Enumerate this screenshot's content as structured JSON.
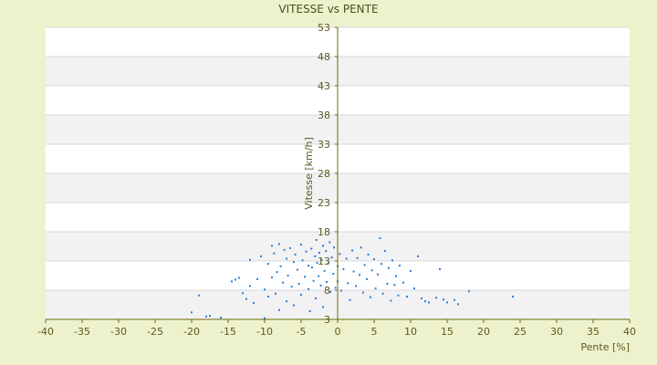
{
  "chart_data": {
    "type": "scatter",
    "title": "VITESSE vs PENTE",
    "xlabel": "Pente [%]",
    "ylabel": "Vitesse [km/h]",
    "xlim": [
      -40,
      40
    ],
    "ylim": [
      3,
      53
    ],
    "x_ticks": [
      -40,
      -35,
      -30,
      -25,
      -20,
      -15,
      -10,
      -5,
      0,
      5,
      10,
      15,
      20,
      25,
      30,
      35,
      40
    ],
    "y_ticks": [
      3,
      8,
      13,
      18,
      23,
      28,
      33,
      38,
      43,
      48,
      53
    ],
    "grid": true,
    "band_colors": [
      "#ffffff",
      "#f2f2f2"
    ],
    "point_color": "#2a7fd4",
    "axis_color": "#6b6b10",
    "series": [
      {
        "points": [
          [
            -20,
            4.2
          ],
          [
            -19,
            7.1
          ],
          [
            -18,
            3.5
          ],
          [
            -17.5,
            3.6
          ],
          [
            -16,
            3.3
          ],
          [
            -14.5,
            9.5
          ],
          [
            -14,
            9.8
          ],
          [
            -13.5,
            10.1
          ],
          [
            -13,
            7.5
          ],
          [
            -12.5,
            6.5
          ],
          [
            -12,
            8.7
          ],
          [
            -12,
            13.2
          ],
          [
            -11.5,
            5.8
          ],
          [
            -11,
            9.9
          ],
          [
            -10.5,
            13.8
          ],
          [
            -10,
            8.1
          ],
          [
            -10,
            3.2
          ],
          [
            -9.5,
            12.5
          ],
          [
            -9.5,
            6.9
          ],
          [
            -9,
            15.6
          ],
          [
            -9,
            10.2
          ],
          [
            -8.7,
            14.3
          ],
          [
            -8.5,
            7.4
          ],
          [
            -8.3,
            11.1
          ],
          [
            -8,
            15.9
          ],
          [
            -8,
            4.6
          ],
          [
            -7.8,
            12.1
          ],
          [
            -7.5,
            9.3
          ],
          [
            -7.3,
            14.9
          ],
          [
            -7,
            6.1
          ],
          [
            -7,
            13.4
          ],
          [
            -6.8,
            10.5
          ],
          [
            -6.5,
            15.2
          ],
          [
            -6.3,
            8.6
          ],
          [
            -6,
            12.8
          ],
          [
            -6,
            5.4
          ],
          [
            -5.8,
            14.1
          ],
          [
            -5.5,
            11.5
          ],
          [
            -5.3,
            9.1
          ],
          [
            -5,
            15.8
          ],
          [
            -5,
            7.2
          ],
          [
            -4.8,
            13.1
          ],
          [
            -4.5,
            10.3
          ],
          [
            -4.3,
            14.6
          ],
          [
            -4,
            8.2
          ],
          [
            -4,
            12.2
          ],
          [
            -3.8,
            4.4
          ],
          [
            -3.6,
            15.1
          ],
          [
            -3.5,
            11.9
          ],
          [
            -3.3,
            9.6
          ],
          [
            -3.1,
            13.8
          ],
          [
            -3,
            6.6
          ],
          [
            -2.9,
            16.6
          ],
          [
            -2.8,
            12.7
          ],
          [
            -2.6,
            10.4
          ],
          [
            -2.5,
            14.4
          ],
          [
            -2.3,
            8.8
          ],
          [
            -2.2,
            13.2
          ],
          [
            -2,
            15.6
          ],
          [
            -2,
            5.1
          ],
          [
            -1.8,
            11.3
          ],
          [
            -1.6,
            14.7
          ],
          [
            -1.5,
            9.4
          ],
          [
            -1.3,
            12.6
          ],
          [
            -1.1,
            16.2
          ],
          [
            -1,
            7.7
          ],
          [
            -0.8,
            13.6
          ],
          [
            -0.6,
            10.8
          ],
          [
            -0.5,
            15.3
          ],
          [
            -0.3,
            8.4
          ],
          [
            0,
            9.5
          ],
          [
            0,
            12.1
          ],
          [
            0.3,
            14.2
          ],
          [
            0.5,
            7.9
          ],
          [
            0.8,
            11.6
          ],
          [
            1.2,
            13.4
          ],
          [
            1.4,
            9.2
          ],
          [
            1.7,
            6.3
          ],
          [
            2,
            14.8
          ],
          [
            2.2,
            11.2
          ],
          [
            2.5,
            8.7
          ],
          [
            2.7,
            13.5
          ],
          [
            3,
            10.6
          ],
          [
            3.2,
            15.3
          ],
          [
            3.5,
            7.6
          ],
          [
            3.7,
            12.3
          ],
          [
            4,
            9.9
          ],
          [
            4.2,
            14.1
          ],
          [
            4.5,
            6.8
          ],
          [
            4.7,
            11.4
          ],
          [
            5,
            13.3
          ],
          [
            5.2,
            8.3
          ],
          [
            5.5,
            10.7
          ],
          [
            5.8,
            16.9
          ],
          [
            6,
            12.5
          ],
          [
            6.2,
            7.4
          ],
          [
            6.5,
            14.7
          ],
          [
            6.8,
            9.1
          ],
          [
            7,
            11.8
          ],
          [
            7.3,
            6.2
          ],
          [
            7.5,
            13.1
          ],
          [
            7.8,
            8.9
          ],
          [
            8,
            10.4
          ],
          [
            8.3,
            7.1
          ],
          [
            8.5,
            12.2
          ],
          [
            9,
            9.3
          ],
          [
            9.5,
            6.9
          ],
          [
            10,
            11.3
          ],
          [
            10.5,
            8.3
          ],
          [
            11,
            13.8
          ],
          [
            11.5,
            6.6
          ],
          [
            12,
            6.1
          ],
          [
            12.5,
            5.9
          ],
          [
            13.5,
            6.7
          ],
          [
            14,
            11.6
          ],
          [
            14.5,
            6.4
          ],
          [
            15,
            5.9
          ],
          [
            16,
            6.3
          ],
          [
            16.5,
            5.6
          ],
          [
            18,
            7.8
          ],
          [
            24,
            6.9
          ]
        ]
      }
    ]
  }
}
